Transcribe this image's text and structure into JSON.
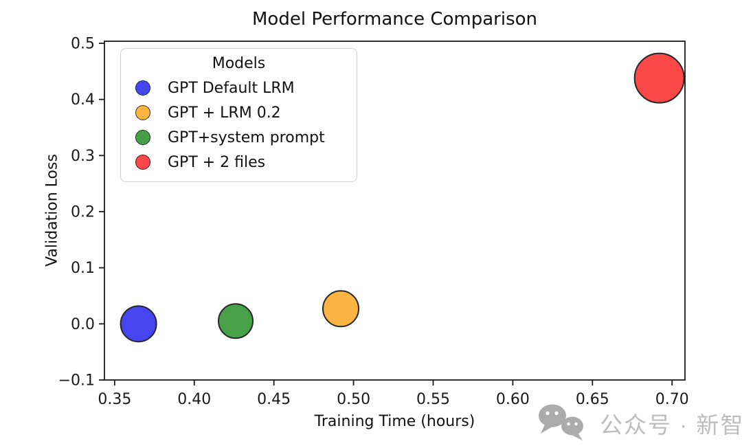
{
  "chart_data": {
    "type": "scatter",
    "title": "Model Performance Comparison",
    "xlabel": "Training Time (hours)",
    "ylabel": "Validation Loss",
    "xlim": [
      0.3436,
      0.7081
    ],
    "ylim": [
      -0.1,
      0.5037
    ],
    "xticks": [
      0.35,
      0.4,
      0.45,
      0.5,
      0.55,
      0.6,
      0.65,
      0.7
    ],
    "yticks": [
      -0.1,
      0.0,
      0.1,
      0.2,
      0.3,
      0.4,
      0.5
    ],
    "grid": false,
    "legend_title": "Models",
    "legend_position": "upper left",
    "marker_edge_color": "#26262b",
    "axis_color": "#1a1a1a",
    "series": [
      {
        "name": "GPT Default LRM",
        "color": "#4646f0",
        "x": 0.365,
        "y": 0.0,
        "marker_radius_px": 26
      },
      {
        "name": "GPT + LRM 0.2",
        "color": "#fbb341",
        "x": 0.492,
        "y": 0.027,
        "marker_radius_px": 26
      },
      {
        "name": "GPT+system prompt",
        "color": "#48a148",
        "x": 0.426,
        "y": 0.005,
        "marker_radius_px": 25
      },
      {
        "name": "GPT + 2 files",
        "color": "#fc4747",
        "x": 0.692,
        "y": 0.438,
        "marker_radius_px": 36
      }
    ]
  },
  "watermark": {
    "text": "公众号 · 新智元",
    "icon": "wechat-logo",
    "color": "#b3b3b3"
  }
}
